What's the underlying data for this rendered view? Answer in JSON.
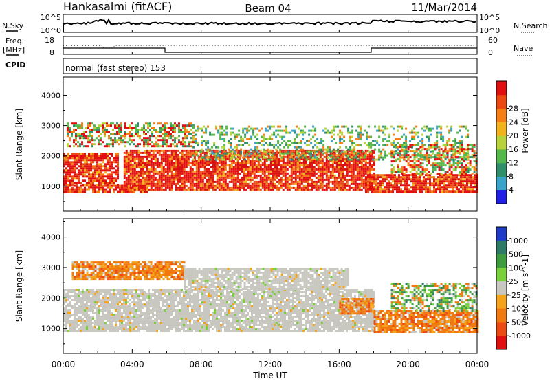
{
  "header": {
    "station": "Hankasalmi (fitACF)",
    "beam": "Beam 04",
    "date": "11/Mar/2014"
  },
  "noise_panel": {
    "left_label": "N.Sky",
    "left_ticks": [
      "10^5",
      "10^0"
    ],
    "right_label": "N.Search",
    "right_ticks": [
      "10^5",
      "10^0"
    ]
  },
  "freq_panel": {
    "left_label_1": "Freq.",
    "left_label_2": "[MHz]",
    "left_ticks": [
      "18",
      "8"
    ],
    "right_label": "Nave",
    "right_ticks": [
      "60",
      "0"
    ]
  },
  "cpid_panel": {
    "left_label": "CPID",
    "mode_text": "normal (fast stereo) 153"
  },
  "chart_data": [
    {
      "type": "heatmap",
      "parameter": "Power",
      "ylabel": "Slant Range [km]",
      "ylim": [
        180,
        4600
      ],
      "yticks": [
        "1000",
        "2000",
        "3000",
        "4000"
      ],
      "xlim": [
        "00:00",
        "24:00"
      ],
      "colorbar_label": "Power [dB]",
      "colorbar_ticks": [
        "4",
        "8",
        "12",
        "16",
        "20",
        "24",
        "28"
      ],
      "colorbar_colors": [
        "#1f1fe6",
        "#3aa3c9",
        "#2f8f6a",
        "#55b84a",
        "#b8d23a",
        "#f2b21c",
        "#f57f15",
        "#ec4a12",
        "#e01010"
      ],
      "regions": [
        {
          "t_start": 0.0,
          "t_end": 4.8,
          "r_start": 800,
          "r_end": 1050,
          "level": "strong"
        },
        {
          "t_start": 0.0,
          "t_end": 3.2,
          "r_start": 1050,
          "r_end": 2100,
          "level": "strong"
        },
        {
          "t_start": 0.2,
          "t_end": 7.5,
          "r_start": 2300,
          "r_end": 3100,
          "level": "mixed"
        },
        {
          "t_start": 3.5,
          "t_end": 18.0,
          "r_start": 900,
          "r_end": 2200,
          "level": "strong"
        },
        {
          "t_start": 7.5,
          "t_end": 23.5,
          "r_start": 1900,
          "r_end": 3000,
          "level": "weak"
        },
        {
          "t_start": 17.5,
          "t_end": 24.0,
          "r_start": 800,
          "r_end": 1400,
          "level": "strong"
        },
        {
          "t_start": 19.0,
          "t_end": 24.0,
          "r_start": 1400,
          "r_end": 2400,
          "level": "mixed"
        }
      ]
    },
    {
      "type": "heatmap",
      "parameter": "Velocity",
      "ylabel": "Slant Range [km]",
      "ylim": [
        180,
        4600
      ],
      "yticks": [
        "1000",
        "2000",
        "3000",
        "4000"
      ],
      "xlim": [
        "00:00",
        "24:00"
      ],
      "colorbar_label": "Velocity [m s^-1]",
      "colorbar_ticks": [
        "1000",
        "500",
        "100",
        "25",
        "-25",
        "-100",
        "-500",
        "-1000"
      ],
      "colorbar_colors": [
        "#1f3cc9",
        "#2e7a66",
        "#3e9c3e",
        "#7ad03a",
        "#c8c8c0",
        "#f5a31a",
        "#f07a10",
        "#ec4a12",
        "#e01010"
      ],
      "regions": [
        {
          "t_start": 0.0,
          "t_end": 18.0,
          "r_start": 900,
          "r_end": 2300,
          "level": "ground"
        },
        {
          "t_start": 0.5,
          "t_end": 7.0,
          "r_start": 2600,
          "r_end": 3200,
          "level": "negative"
        },
        {
          "t_start": 7.0,
          "t_end": 16.5,
          "r_start": 2300,
          "r_end": 3000,
          "level": "ground"
        },
        {
          "t_start": 16.0,
          "t_end": 18.0,
          "r_start": 1500,
          "r_end": 2000,
          "level": "negative"
        },
        {
          "t_start": 18.0,
          "t_end": 24.0,
          "r_start": 900,
          "r_end": 1600,
          "level": "negative"
        },
        {
          "t_start": 19.0,
          "t_end": 24.0,
          "r_start": 1600,
          "r_end": 2500,
          "level": "mixed"
        }
      ]
    }
  ],
  "x_axis": {
    "ticks": [
      "00:00",
      "04:00",
      "08:00",
      "12:00",
      "16:00",
      "20:00",
      "00:00"
    ],
    "label": "Time UT"
  }
}
